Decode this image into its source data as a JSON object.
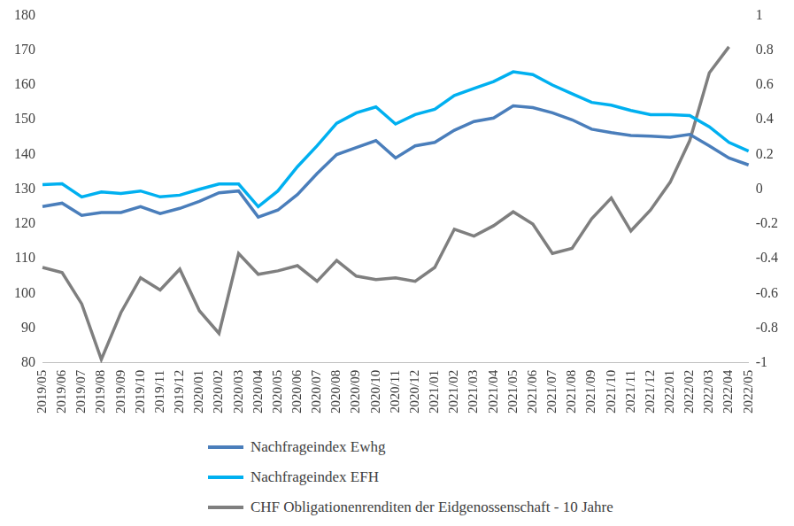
{
  "chart_data": {
    "type": "line",
    "categories": [
      "2019/05",
      "2019/06",
      "2019/07",
      "2019/08",
      "2019/09",
      "2019/10",
      "2019/11",
      "2019/12",
      "2020/01",
      "2020/02",
      "2020/03",
      "2020/04",
      "2020/05",
      "2020/06",
      "2020/07",
      "2020/08",
      "2020/09",
      "2020/10",
      "2020/11",
      "2020/12",
      "2021/01",
      "2021/02",
      "2021/03",
      "2021/04",
      "2021/05",
      "2021/06",
      "2021/07",
      "2021/08",
      "2021/09",
      "2021/10",
      "2021/11",
      "2021/12",
      "2022/01",
      "2022/02",
      "2022/03",
      "2022/04",
      "2022/05"
    ],
    "series": [
      {
        "name": "Nachfrageindex Ewhg",
        "color": "#4a7ebb",
        "values": [
          125,
          126,
          122.5,
          123.3,
          123.3,
          125,
          123,
          124.5,
          126.5,
          129,
          129.5,
          122,
          124,
          128.5,
          134.5,
          140,
          142,
          144,
          139,
          142.5,
          143.5,
          147,
          149.5,
          150.5,
          154,
          153.5,
          152,
          150,
          147.3,
          146.3,
          145.5,
          145.3,
          145,
          145.8,
          142.5,
          139,
          137
        ]
      },
      {
        "name": "Nachfrageindex EFH",
        "color": "#00b0f0",
        "values": [
          131.3,
          131.6,
          127.8,
          129.2,
          128.8,
          129.5,
          127.8,
          128.3,
          130,
          131.5,
          131.5,
          125,
          129.5,
          136.5,
          142.5,
          149,
          152,
          153.7,
          148.8,
          151.5,
          153,
          157,
          159,
          161,
          163.8,
          163,
          160,
          157.5,
          155,
          154.2,
          152.7,
          151.5,
          151.5,
          151.2,
          148,
          143.5,
          141
        ]
      },
      {
        "name": "CHF Obligationenrenditen der Eidgenossenschaft - 10 Jahre",
        "color": "#7f7f7f",
        "axis": "y2",
        "values": [
          -0.45,
          -0.48,
          -0.66,
          -0.98,
          -0.71,
          -0.51,
          -0.58,
          -0.46,
          -0.7,
          -0.83,
          -0.37,
          -0.49,
          -0.47,
          -0.44,
          -0.53,
          -0.41,
          -0.5,
          -0.52,
          -0.51,
          -0.53,
          -0.45,
          -0.23,
          -0.27,
          -0.21,
          -0.13,
          -0.2,
          -0.37,
          -0.34,
          -0.17,
          -0.05,
          -0.24,
          -0.12,
          0.04,
          0.28,
          0.67,
          0.82,
          null
        ]
      }
    ],
    "ylim": [
      80,
      180
    ],
    "yticks": [
      80,
      90,
      100,
      110,
      120,
      130,
      140,
      150,
      160,
      170,
      180
    ],
    "y2lim": [
      -1,
      1
    ],
    "y2ticks": [
      -1,
      -0.8,
      -0.6,
      -0.4,
      -0.2,
      0,
      0.2,
      0.4,
      0.6,
      0.8,
      1
    ],
    "grid": false,
    "legend": "bottom"
  }
}
